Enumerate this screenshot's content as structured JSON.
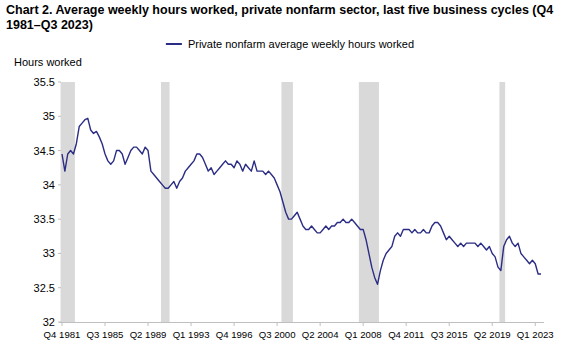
{
  "chart_data": {
    "type": "line",
    "title": "Chart 2. Average weekly hours worked, private nonfarm sector, last five business cycles (Q4 1981–Q3 2023)",
    "y_label": "Hours worked",
    "categories": [
      "Q4 1981",
      null,
      null,
      null,
      null,
      null,
      null,
      null,
      null,
      null,
      null,
      null,
      null,
      null,
      null,
      "Q3 1985",
      null,
      null,
      null,
      null,
      null,
      null,
      null,
      null,
      null,
      null,
      null,
      null,
      null,
      null,
      "Q2 1989",
      null,
      null,
      null,
      null,
      null,
      null,
      null,
      null,
      null,
      null,
      null,
      null,
      null,
      null,
      "Q1 1993",
      null,
      null,
      null,
      null,
      null,
      null,
      null,
      null,
      null,
      null,
      null,
      null,
      null,
      null,
      "Q4 1996",
      null,
      null,
      null,
      null,
      null,
      null,
      null,
      null,
      null,
      null,
      null,
      null,
      null,
      null,
      "Q3 2000",
      null,
      null,
      null,
      null,
      null,
      null,
      null,
      null,
      null,
      null,
      null,
      null,
      null,
      null,
      "Q2 2004",
      null,
      null,
      null,
      null,
      null,
      null,
      null,
      null,
      null,
      null,
      null,
      null,
      null,
      null,
      "Q1 2008",
      null,
      null,
      null,
      null,
      null,
      null,
      null,
      null,
      null,
      null,
      null,
      null,
      null,
      null,
      "Q4 2011",
      null,
      null,
      null,
      null,
      null,
      null,
      null,
      null,
      null,
      null,
      null,
      null,
      null,
      null,
      "Q3 2015",
      null,
      null,
      null,
      null,
      null,
      null,
      null,
      null,
      null,
      null,
      null,
      null,
      null,
      null,
      "Q2 2019",
      null,
      null,
      null,
      null,
      null,
      null,
      null,
      null,
      null,
      null,
      null,
      null,
      null,
      null,
      "Q1 2023",
      null,
      null
    ],
    "series": [
      {
        "name": "Private nonfarm average weekly hours worked",
        "color": "#2b2d84",
        "values": [
          34.45,
          34.2,
          34.45,
          34.5,
          34.45,
          34.6,
          34.85,
          34.9,
          34.95,
          34.97,
          34.8,
          34.75,
          34.78,
          34.7,
          34.6,
          34.45,
          34.35,
          34.3,
          34.35,
          34.5,
          34.5,
          34.45,
          34.3,
          34.4,
          34.5,
          34.55,
          34.55,
          34.5,
          34.45,
          34.55,
          34.5,
          34.2,
          34.15,
          34.1,
          34.05,
          34.0,
          33.95,
          33.95,
          34.0,
          34.05,
          33.95,
          34.05,
          34.1,
          34.2,
          34.25,
          34.3,
          34.35,
          34.45,
          34.45,
          34.4,
          34.3,
          34.2,
          34.25,
          34.15,
          34.2,
          34.25,
          34.3,
          34.35,
          34.3,
          34.3,
          34.25,
          34.35,
          34.3,
          34.2,
          34.3,
          34.25,
          34.2,
          34.35,
          34.2,
          34.2,
          34.2,
          34.15,
          34.2,
          34.15,
          34.1,
          34.0,
          33.9,
          33.75,
          33.6,
          33.5,
          33.5,
          33.55,
          33.6,
          33.5,
          33.4,
          33.35,
          33.35,
          33.4,
          33.35,
          33.3,
          33.3,
          33.35,
          33.4,
          33.35,
          33.4,
          33.4,
          33.45,
          33.45,
          33.5,
          33.45,
          33.45,
          33.5,
          33.45,
          33.4,
          33.35,
          33.35,
          33.2,
          33.0,
          32.8,
          32.65,
          32.55,
          32.75,
          32.9,
          33.0,
          33.05,
          33.1,
          33.25,
          33.3,
          33.25,
          33.35,
          33.35,
          33.35,
          33.3,
          33.35,
          33.3,
          33.3,
          33.35,
          33.3,
          33.3,
          33.4,
          33.45,
          33.45,
          33.4,
          33.3,
          33.2,
          33.25,
          33.2,
          33.15,
          33.1,
          33.15,
          33.1,
          33.15,
          33.15,
          33.15,
          33.15,
          33.1,
          33.15,
          33.1,
          33.05,
          33.1,
          33.0,
          32.95,
          32.8,
          32.75,
          33.1,
          33.2,
          33.25,
          33.15,
          33.1,
          33.15,
          33.0,
          32.95,
          32.9,
          32.85,
          32.9,
          32.85,
          32.7,
          32.7
        ]
      }
    ],
    "shaded_ranges": [
      [
        0,
        4
      ],
      [
        35,
        37
      ],
      [
        77,
        80
      ],
      [
        104,
        110
      ],
      [
        153,
        154
      ]
    ],
    "ylim": [
      32,
      35.5
    ],
    "yticks": [
      32,
      32.5,
      33,
      33.5,
      34,
      34.5,
      35,
      35.5
    ],
    "grid": false,
    "legend": "top"
  }
}
